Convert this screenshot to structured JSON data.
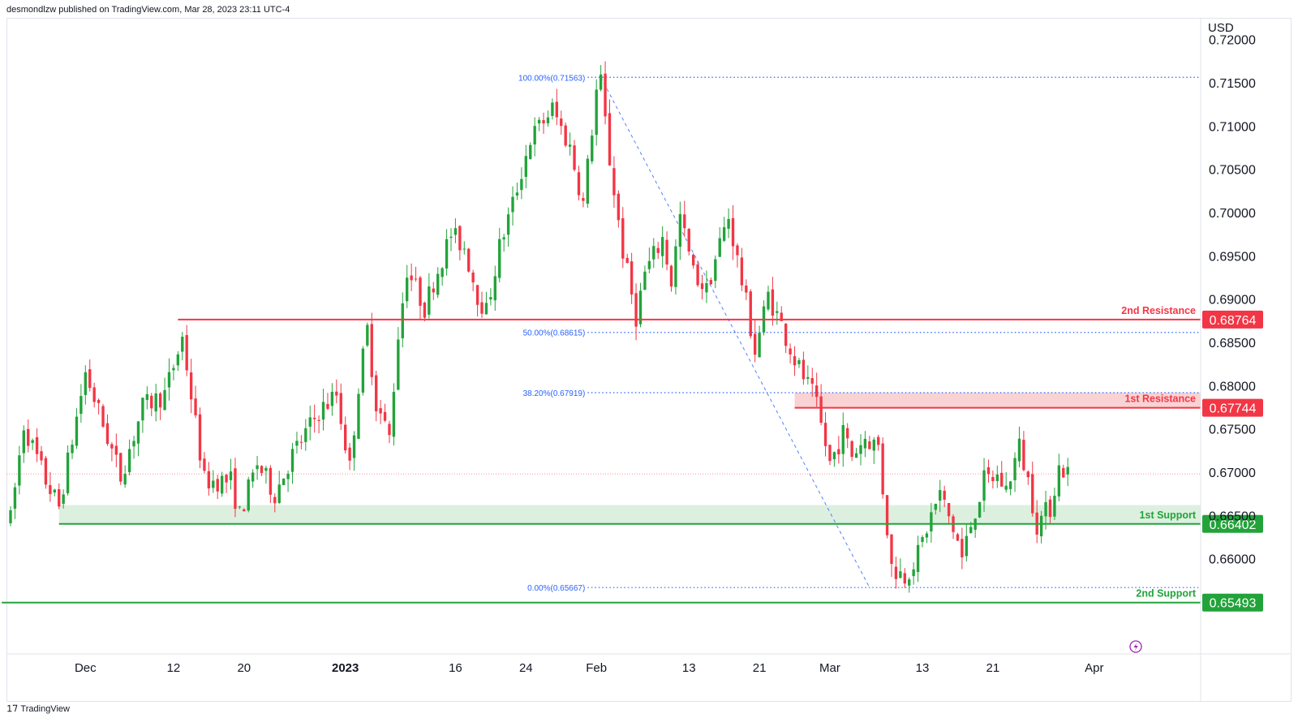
{
  "header": {
    "publisher": "desmondlzw published on TradingView.com, Mar 28, 2023 23:11 UTC-4"
  },
  "footer": {
    "brand": "TradingView",
    "logo_icon": "tradingview-logo-icon"
  },
  "chart_data": {
    "type": "candlestick",
    "currency_label": "USD",
    "ylim": [
      0.649,
      0.7225
    ],
    "y_ticks": [
      "0.72000",
      "0.71500",
      "0.71000",
      "0.70500",
      "0.70000",
      "0.69500",
      "0.69000",
      "0.68500",
      "0.68000",
      "0.67500",
      "0.67000",
      "0.66500",
      "0.66000"
    ],
    "x_ticks": [
      {
        "label": "Dec",
        "bar": 17,
        "bold": false
      },
      {
        "label": "12",
        "bar": 37,
        "bold": false
      },
      {
        "label": "20",
        "bar": 53,
        "bold": false
      },
      {
        "label": "2023",
        "bar": 76,
        "bold": true
      },
      {
        "label": "16",
        "bar": 101,
        "bold": false
      },
      {
        "label": "24",
        "bar": 117,
        "bold": false
      },
      {
        "label": "Feb",
        "bar": 133,
        "bold": false
      },
      {
        "label": "13",
        "bar": 154,
        "bold": false
      },
      {
        "label": "21",
        "bar": 170,
        "bold": false
      },
      {
        "label": "Mar",
        "bar": 186,
        "bold": false
      },
      {
        "label": "13",
        "bar": 207,
        "bold": false
      },
      {
        "label": "21",
        "bar": 223,
        "bold": false
      },
      {
        "label": "Apr",
        "bar": 246,
        "bold": false
      }
    ],
    "waypoints": [
      [
        0,
        0.6645
      ],
      [
        3,
        0.6755
      ],
      [
        8,
        0.669
      ],
      [
        11,
        0.666
      ],
      [
        17,
        0.6815
      ],
      [
        21,
        0.6755
      ],
      [
        25,
        0.6695
      ],
      [
        30,
        0.6775
      ],
      [
        35,
        0.679
      ],
      [
        39,
        0.6855
      ],
      [
        44,
        0.669
      ],
      [
        50,
        0.669
      ],
      [
        52,
        0.665
      ],
      [
        56,
        0.671
      ],
      [
        60,
        0.6675
      ],
      [
        64,
        0.672
      ],
      [
        70,
        0.677
      ],
      [
        74,
        0.679
      ],
      [
        77,
        0.6705
      ],
      [
        79,
        0.68
      ],
      [
        81,
        0.6865
      ],
      [
        83,
        0.678
      ],
      [
        86,
        0.674
      ],
      [
        88,
        0.686
      ],
      [
        90,
        0.6935
      ],
      [
        94,
        0.689
      ],
      [
        96,
        0.692
      ],
      [
        100,
        0.6975
      ],
      [
        103,
        0.696
      ],
      [
        106,
        0.6905
      ],
      [
        108,
        0.6885
      ],
      [
        111,
        0.696
      ],
      [
        114,
        0.701
      ],
      [
        118,
        0.7085
      ],
      [
        123,
        0.712
      ],
      [
        127,
        0.7075
      ],
      [
        130,
        0.701
      ],
      [
        133,
        0.714
      ],
      [
        134,
        0.715
      ],
      [
        136,
        0.706
      ],
      [
        139,
        0.6955
      ],
      [
        142,
        0.688
      ],
      [
        144,
        0.693
      ],
      [
        148,
        0.697
      ],
      [
        150,
        0.692
      ],
      [
        152,
        0.6995
      ],
      [
        155,
        0.693
      ],
      [
        158,
        0.691
      ],
      [
        161,
        0.6965
      ],
      [
        163,
        0.6995
      ],
      [
        167,
        0.6895
      ],
      [
        169,
        0.684
      ],
      [
        172,
        0.6905
      ],
      [
        175,
        0.687
      ],
      [
        178,
        0.683
      ],
      [
        182,
        0.679
      ],
      [
        183,
        0.6775
      ],
      [
        186,
        0.671
      ],
      [
        189,
        0.6745
      ],
      [
        191,
        0.672
      ],
      [
        194,
        0.674
      ],
      [
        197,
        0.673
      ],
      [
        198,
        0.668
      ],
      [
        200,
        0.659
      ],
      [
        203,
        0.658
      ],
      [
        206,
        0.6605
      ],
      [
        209,
        0.665
      ],
      [
        211,
        0.6675
      ],
      [
        215,
        0.662
      ],
      [
        216,
        0.66
      ],
      [
        218,
        0.664
      ],
      [
        221,
        0.669
      ],
      [
        224,
        0.6695
      ],
      [
        226,
        0.668
      ],
      [
        229,
        0.673
      ],
      [
        231,
        0.669
      ],
      [
        233,
        0.664
      ],
      [
        236,
        0.666
      ],
      [
        238,
        0.6705
      ],
      [
        240,
        0.67
      ]
    ],
    "price_line": 0.6698,
    "levels": [
      {
        "name": "2nd Resistance",
        "value": 0.68764,
        "price_label": "0.68764",
        "color": "#f23645",
        "start_bar": 38
      },
      {
        "name": "1st Resistance",
        "value": 0.67744,
        "price_label": "0.67744",
        "color": "#f23645",
        "start_bar": 178,
        "zone": [
          0.67744,
          0.67919
        ],
        "zone_color": "#f9d2d4"
      },
      {
        "name": "1st Support",
        "value": 0.66402,
        "price_label": "0.66402",
        "color": "#22a33a",
        "start_bar": 11,
        "zone": [
          0.66402,
          0.6662
        ],
        "zone_color": "#ddf0df"
      },
      {
        "name": "2nd Support",
        "value": 0.65493,
        "price_label": "0.65493",
        "color": "#22a33a",
        "start_bar": -2
      }
    ],
    "fibonacci": {
      "color": "#2962ff",
      "start_bar": 131,
      "levels": [
        {
          "label": "100.00%(0.71563)",
          "value": 0.71563
        },
        {
          "label": "50.00%(0.68615)",
          "value": 0.68615
        },
        {
          "label": "38.20%(0.67919)",
          "value": 0.67919
        },
        {
          "label": "0.00%(0.65667)",
          "value": 0.65667
        }
      ],
      "trend_from": {
        "bar": 134,
        "value": 0.71563
      },
      "trend_to": {
        "bar": 195,
        "value": 0.65667
      }
    },
    "colors": {
      "up": "#22a33a",
      "down": "#f23645",
      "grid": "#e0e3eb",
      "axis_text": "#131722"
    },
    "marker_icon": "lightning-icon"
  }
}
